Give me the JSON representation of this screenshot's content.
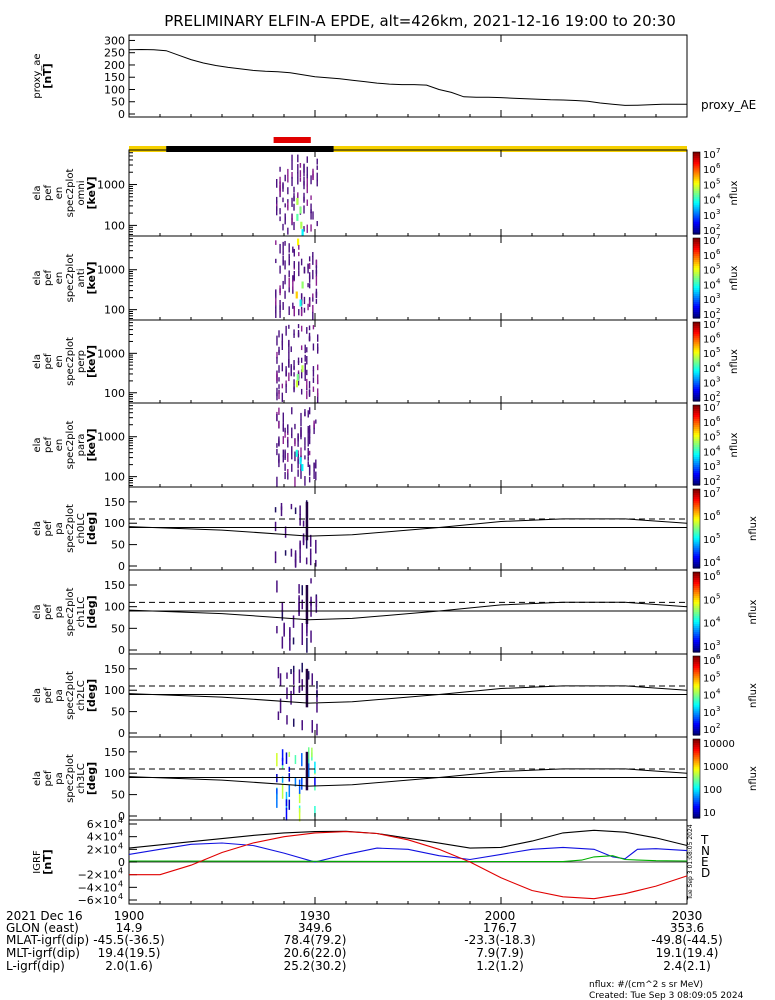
{
  "title": "PRELIMINARY ELFIN-A EPDE, alt=426km, 2021-12-16 19:00 to 20:30",
  "time_axis": {
    "start_minutes": 0,
    "end_minutes": 90,
    "tick_minutes": [
      0,
      30,
      60,
      90
    ],
    "tick_labels": [
      "1900",
      "1930",
      "2000",
      "2030"
    ]
  },
  "chart_data": [
    {
      "type": "line",
      "id": "proxy_ae",
      "ylabel_lines": [
        "proxy_ae",
        "[nT]"
      ],
      "legend": "proxy_AE",
      "ylim": [
        0,
        310
      ],
      "yticks": [
        0,
        50,
        100,
        150,
        200,
        250,
        300
      ],
      "series": [
        {
          "name": "proxy_AE",
          "x": [
            0,
            2,
            4,
            6,
            8,
            10,
            12,
            14,
            16,
            18,
            20,
            22,
            24,
            26,
            28,
            30,
            32,
            34,
            36,
            38,
            40,
            42,
            44,
            46,
            48,
            50,
            52,
            54,
            56,
            58,
            60,
            62,
            64,
            66,
            68,
            70,
            72,
            74,
            76,
            78,
            80,
            82,
            84,
            86,
            88,
            90
          ],
          "y": [
            262,
            263,
            262,
            258,
            240,
            222,
            208,
            198,
            190,
            184,
            178,
            174,
            172,
            168,
            160,
            152,
            148,
            144,
            138,
            132,
            126,
            122,
            120,
            120,
            118,
            100,
            88,
            70,
            68,
            68,
            67,
            64,
            62,
            60,
            58,
            57,
            55,
            52,
            45,
            40,
            35,
            36,
            38,
            40,
            40,
            40
          ]
        }
      ]
    },
    {
      "type": "heatmap",
      "id": "spec_omni",
      "ylabel_lines": [
        "ela",
        "pef",
        "en",
        "spec2plot",
        "omni",
        "[keV]"
      ],
      "yscale": "log",
      "ylim": [
        55,
        7000
      ],
      "ytick_labels": [
        "100",
        "1000"
      ],
      "ytick_values": [
        100,
        1000
      ],
      "colorbar": {
        "label": "nflux",
        "range": [
          100,
          10000000
        ],
        "tick_exponents": [
          "10",
          "10",
          "10",
          "10",
          "10",
          "10"
        ],
        "tick_powers": [
          "2",
          "3",
          "4",
          "5",
          "6",
          "7"
        ]
      }
    },
    {
      "type": "heatmap",
      "id": "spec_anti",
      "ylabel_lines": [
        "ela",
        "pef",
        "en",
        "spec2plot",
        "anti",
        "[keV]"
      ],
      "yscale": "log",
      "ylim": [
        55,
        7000
      ],
      "ytick_labels": [
        "100",
        "1000"
      ],
      "ytick_values": [
        100,
        1000
      ],
      "colorbar": {
        "label": "nflux",
        "range": [
          100,
          10000000
        ],
        "tick_exponents": [
          "10",
          "10",
          "10",
          "10",
          "10",
          "10"
        ],
        "tick_powers": [
          "2",
          "3",
          "4",
          "5",
          "6",
          "7"
        ]
      }
    },
    {
      "type": "heatmap",
      "id": "spec_perp",
      "ylabel_lines": [
        "ela",
        "pef",
        "en",
        "spec2plot",
        "perp",
        "[keV]"
      ],
      "yscale": "log",
      "ylim": [
        55,
        7000
      ],
      "ytick_labels": [
        "100",
        "1000"
      ],
      "ytick_values": [
        100,
        1000
      ],
      "colorbar": {
        "label": "nflux",
        "range": [
          100,
          10000000
        ],
        "tick_exponents": [
          "10",
          "10",
          "10",
          "10",
          "10",
          "10"
        ],
        "tick_powers": [
          "2",
          "3",
          "4",
          "5",
          "6",
          "7"
        ]
      }
    },
    {
      "type": "heatmap",
      "id": "spec_para",
      "ylabel_lines": [
        "ela",
        "pef",
        "en",
        "spec2plot",
        "para",
        "[keV]"
      ],
      "yscale": "log",
      "ylim": [
        55,
        7000
      ],
      "ytick_labels": [
        "100",
        "1000"
      ],
      "ytick_values": [
        100,
        1000
      ],
      "colorbar": {
        "label": "nflux",
        "range": [
          100,
          10000000
        ],
        "tick_exponents": [
          "10",
          "10",
          "10",
          "10",
          "10",
          "10"
        ],
        "tick_powers": [
          "2",
          "3",
          "4",
          "5",
          "6",
          "7"
        ]
      }
    },
    {
      "type": "heatmap",
      "id": "pa_ch0",
      "ylabel_lines": [
        "ela",
        "pef",
        "pa",
        "spec2plot",
        "ch0LC",
        "[deg]"
      ],
      "ylim": [
        0,
        180
      ],
      "yticks": [
        0,
        50,
        100,
        150
      ],
      "colorbar": {
        "label": "nflux",
        "tick_exponents": [
          "10",
          "10",
          "10",
          "10"
        ],
        "tick_powers": [
          "4",
          "5",
          "6",
          "7"
        ]
      }
    },
    {
      "type": "heatmap",
      "id": "pa_ch1",
      "ylabel_lines": [
        "ela",
        "pef",
        "pa",
        "spec2plot",
        "ch1LC",
        "[deg]"
      ],
      "ylim": [
        0,
        180
      ],
      "yticks": [
        0,
        50,
        100,
        150
      ],
      "colorbar": {
        "label": "nflux",
        "tick_exponents": [
          "10",
          "10",
          "10",
          "10"
        ],
        "tick_powers": [
          "3",
          "4",
          "5",
          "6"
        ]
      }
    },
    {
      "type": "heatmap",
      "id": "pa_ch2",
      "ylabel_lines": [
        "ela",
        "pef",
        "pa",
        "spec2plot",
        "ch2LC",
        "[deg]"
      ],
      "ylim": [
        0,
        180
      ],
      "yticks": [
        0,
        50,
        100,
        150
      ],
      "colorbar": {
        "label": "nflux",
        "tick_exponents": [
          "10",
          "10",
          "10",
          "10",
          "10"
        ],
        "tick_powers": [
          "2",
          "3",
          "4",
          "5",
          "6"
        ]
      }
    },
    {
      "type": "heatmap",
      "id": "pa_ch3",
      "ylabel_lines": [
        "ela",
        "pef",
        "pa",
        "spec2plot",
        "ch3LC",
        "[deg]"
      ],
      "ylim": [
        0,
        180
      ],
      "yticks": [
        0,
        50,
        100,
        150
      ],
      "colorbar": {
        "label": "nflux",
        "tick_labels": [
          "10",
          "100",
          "1000",
          "10000"
        ]
      }
    },
    {
      "type": "line",
      "id": "igrf",
      "ylabel_lines": [
        "IGRF",
        "[nT]"
      ],
      "ylim": [
        -60000,
        60000
      ],
      "ytick_mantissas": [
        "−6×10",
        "−4×10",
        "−2×10",
        "0",
        "2×10",
        "4×10",
        "6×10"
      ],
      "ytick_values": [
        -60000,
        -40000,
        -20000,
        0,
        20000,
        40000,
        60000
      ],
      "ytick_power": "4",
      "legend": [
        "T",
        "N",
        "E",
        "D"
      ],
      "colors": {
        "T": "#000000",
        "N": "#1010e0",
        "E": "#00b000",
        "D": "#e00000"
      },
      "series": [
        {
          "name": "T",
          "x": [
            0,
            10,
            20,
            25,
            30,
            35,
            40,
            48,
            55,
            60,
            65,
            70,
            75,
            80,
            85,
            90
          ],
          "y": [
            22000,
            32000,
            42000,
            46000,
            48000,
            48500,
            45000,
            33000,
            22000,
            23000,
            33000,
            46000,
            50000,
            47000,
            38000,
            26000
          ]
        },
        {
          "name": "N",
          "x": [
            0,
            5,
            10,
            15,
            20,
            25,
            30,
            35,
            40,
            45,
            50,
            55,
            60,
            65,
            70,
            75,
            78,
            80,
            82,
            85,
            90
          ],
          "y": [
            12000,
            20000,
            28000,
            30000,
            26000,
            14000,
            0,
            12000,
            22000,
            20000,
            10000,
            4000,
            12000,
            20000,
            23000,
            20000,
            8000,
            5000,
            20000,
            21000,
            18000
          ]
        },
        {
          "name": "E",
          "x": [
            0,
            20,
            40,
            60,
            70,
            73,
            75,
            78,
            80,
            85,
            90
          ],
          "y": [
            1500,
            1200,
            1000,
            800,
            600,
            3000,
            8000,
            10000,
            4000,
            2000,
            1500
          ]
        },
        {
          "name": "D",
          "x": [
            0,
            5,
            10,
            15,
            20,
            25,
            30,
            35,
            40,
            45,
            50,
            55,
            60,
            65,
            70,
            75,
            80,
            85,
            90
          ],
          "y": [
            -20000,
            -20000,
            -5000,
            15000,
            30000,
            40000,
            46000,
            48000,
            45000,
            35000,
            20000,
            0,
            -25000,
            -45000,
            -55000,
            -58000,
            -50000,
            -38000,
            -22000
          ]
        }
      ]
    }
  ],
  "spectrogram_region": {
    "start_min": 23.5,
    "end_min": 30.5
  },
  "orbit_bar": {
    "yellow": [
      [
        0,
        6
      ],
      [
        33,
        90
      ]
    ],
    "black": [
      [
        6,
        33
      ]
    ],
    "red": [
      [
        23,
        29
      ]
    ]
  },
  "pa_loss_cone": {
    "x": [
      0,
      15,
      29,
      36,
      50,
      60,
      70,
      80,
      90
    ],
    "solid": [
      92,
      84,
      70,
      73,
      90,
      104,
      110,
      110,
      100
    ],
    "dashed": 110
  },
  "ephemeris": {
    "rows": [
      {
        "label": "2021 Dec 16",
        "values": [
          "1900",
          "1930",
          "2000",
          "2030"
        ]
      },
      {
        "label": "GLON (east)",
        "values": [
          "14.9",
          "349.6",
          "176.7",
          "353.6"
        ]
      },
      {
        "label": "MLAT-igrf(dip)",
        "values": [
          "-45.5(-36.5)",
          "78.4(79.2)",
          "-23.3(-18.3)",
          "-49.8(-44.5)"
        ]
      },
      {
        "label": "MLT-igrf(dip)",
        "values": [
          "19.4(19.5)",
          "20.6(22.0)",
          "7.9(7.9)",
          "19.1(19.4)"
        ]
      },
      {
        "label": "L-igrf(dip)",
        "values": [
          "2.0(1.6)",
          "25.2(30.2)",
          "1.2(1.2)",
          "2.4(2.1)"
        ]
      }
    ],
    "ephemeris_labels_display": [
      "2021 Dec 16",
      "GLON (east)",
      "MLAT-igrf(dip)",
      "MLT-igrf(dip)",
      "L-igrf(dip)"
    ]
  },
  "footer": {
    "units": "nflux: #/(cm^2 s sr MeV)",
    "created": "Created: Tue Sep  3 08:09:05 2024",
    "side_stamp": "Tue Sep  3 01:08:05 2024"
  }
}
